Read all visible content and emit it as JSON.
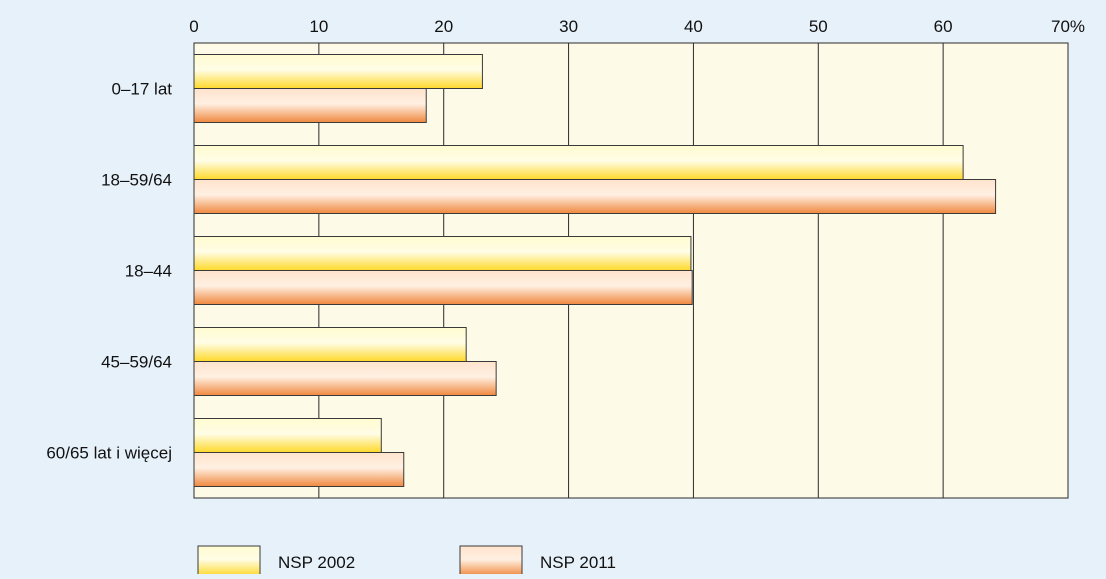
{
  "chart_data": {
    "type": "bar",
    "orientation": "horizontal",
    "categories": [
      "0–17 lat",
      "18–59/64",
      "18–44",
      "45–59/64",
      "60/65 lat i więcej"
    ],
    "series": [
      {
        "name": "NSP 2002",
        "values": [
          23.1,
          61.6,
          39.8,
          21.8,
          15.0
        ]
      },
      {
        "name": "NSP 2011",
        "values": [
          18.6,
          64.2,
          39.9,
          24.2,
          16.8
        ]
      }
    ],
    "xlim": [
      0,
      70
    ],
    "x_ticks": [
      0,
      10,
      20,
      30,
      40,
      50,
      60,
      70
    ],
    "x_tick_labels": [
      "0",
      "10",
      "20",
      "30",
      "40",
      "50",
      "60",
      "70%"
    ],
    "x_axis_position": "top",
    "grid": true,
    "legend_position": "bottom-left",
    "title": "",
    "xlabel": "",
    "ylabel": ""
  },
  "colors": {
    "background": "#e6f1fa",
    "plot_background": "#fdfbe8",
    "grid": "#2a2a2a",
    "series_2002_light": "#fffbd0",
    "series_2002": "#ffd92a",
    "series_2011_light": "#ffe3cc",
    "series_2011": "#f0883e",
    "bar_outline": "#3a3a3a"
  }
}
